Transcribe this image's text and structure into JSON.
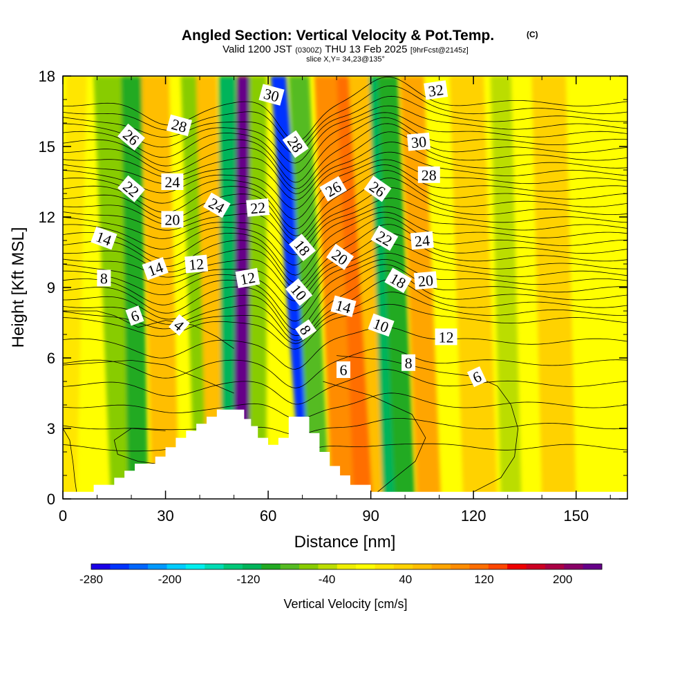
{
  "title": {
    "main": "Angled Section: Vertical Velocity & Pot.Temp.",
    "main_unit": "(C)",
    "valid_prefix": "Valid 1200 JST",
    "valid_utc": "(0300Z)",
    "valid_date": "THU 13 Feb 2025",
    "forecast": "[9hrFcst@2145z]",
    "slice": "slice X,Y= 34,23@135°"
  },
  "chart_data": {
    "type": "heatmap",
    "xlabel": "Distance [nm]",
    "ylabel": "Height [Kft MSL]",
    "xlim": [
      0,
      165
    ],
    "ylim": [
      0,
      18
    ],
    "x_ticks": [
      0,
      30,
      60,
      90,
      120,
      150
    ],
    "y_ticks": [
      0,
      3,
      6,
      9,
      12,
      15,
      18
    ],
    "grid": false,
    "colorbar": {
      "label": "Vertical Velocity [cm/s]",
      "min": -280,
      "max": 240,
      "step": 20,
      "tick_values": [
        -280,
        -200,
        -120,
        -40,
        40,
        120,
        200
      ],
      "colors": [
        "#1a00e6",
        "#0033ff",
        "#0066ff",
        "#0099ff",
        "#00ccff",
        "#00eeee",
        "#00dcb4",
        "#00c878",
        "#00b45a",
        "#22aa22",
        "#55bb22",
        "#88cc00",
        "#bbdd00",
        "#eeee00",
        "#ffff00",
        "#ffe600",
        "#ffd200",
        "#ffbe00",
        "#ffa500",
        "#ff8c00",
        "#ff6e00",
        "#ff4600",
        "#ee0000",
        "#cc0022",
        "#aa0044",
        "#880066",
        "#660088"
      ]
    },
    "velocity_bands": [
      {
        "x_bottom": 1,
        "x_top": 4,
        "half_width": 3,
        "value": 20
      },
      {
        "x_bottom": 18,
        "x_top": 13,
        "half_width": 4,
        "value": -60
      },
      {
        "x_bottom": 22,
        "x_top": 20,
        "half_width": 3,
        "value": -100
      },
      {
        "x_bottom": 30,
        "x_top": 27,
        "half_width": 4,
        "value": 70
      },
      {
        "x_bottom": 41,
        "x_top": 37,
        "half_width": 2.5,
        "value": -50
      },
      {
        "x_bottom": 45,
        "x_top": 42,
        "half_width": 3,
        "value": 60
      },
      {
        "x_bottom": 49,
        "x_top": 48,
        "half_width": 2.5,
        "value": -110
      },
      {
        "x_bottom": 53,
        "x_top": 54,
        "half_width": 3.2,
        "value": 250
      },
      {
        "x_bottom": 57,
        "x_top": 57,
        "half_width": 2.5,
        "value": -60
      },
      {
        "x_bottom": 72,
        "x_top": 63,
        "half_width": 2.3,
        "value": -260
      },
      {
        "x_bottom": 75,
        "x_top": 69,
        "half_width": 3,
        "value": -80
      },
      {
        "x_bottom": 82,
        "x_top": 77,
        "half_width": 3.5,
        "value": 100
      },
      {
        "x_bottom": 88,
        "x_top": 83,
        "half_width": 3,
        "value": 130
      },
      {
        "x_bottom": 94,
        "x_top": 87,
        "half_width": 3.5,
        "value": 60
      },
      {
        "x_bottom": 96,
        "x_top": 92,
        "half_width": 2.5,
        "value": -110
      },
      {
        "x_bottom": 100,
        "x_top": 95,
        "half_width": 3,
        "value": -100
      },
      {
        "x_bottom": 107,
        "x_top": 102,
        "half_width": 3.5,
        "value": 80
      },
      {
        "x_bottom": 122,
        "x_top": 118,
        "half_width": 5,
        "value": 50
      },
      {
        "x_bottom": 131,
        "x_top": 128,
        "half_width": 3,
        "value": -40
      },
      {
        "x_bottom": 145,
        "x_top": 142,
        "half_width": 5,
        "value": 50
      }
    ],
    "terrain": [
      [
        0,
        0.3
      ],
      [
        9,
        0.3
      ],
      [
        9,
        0.6
      ],
      [
        15,
        0.6
      ],
      [
        15,
        0.9
      ],
      [
        18,
        0.9
      ],
      [
        18,
        1.2
      ],
      [
        21,
        1.2
      ],
      [
        21,
        1.5
      ],
      [
        27,
        1.5
      ],
      [
        27,
        1.8
      ],
      [
        30,
        1.8
      ],
      [
        30,
        2.2
      ],
      [
        33,
        2.2
      ],
      [
        33,
        2.6
      ],
      [
        36,
        2.6
      ],
      [
        36,
        2.9
      ],
      [
        39,
        2.9
      ],
      [
        39,
        3.2
      ],
      [
        42,
        3.2
      ],
      [
        42,
        3.5
      ],
      [
        45,
        3.5
      ],
      [
        45,
        3.8
      ],
      [
        53,
        3.8
      ],
      [
        53,
        3.4
      ],
      [
        55,
        3.4
      ],
      [
        55,
        3.1
      ],
      [
        57,
        3.1
      ],
      [
        57,
        2.6
      ],
      [
        60,
        2.6
      ],
      [
        60,
        2.3
      ],
      [
        63,
        2.3
      ],
      [
        63,
        2.6
      ],
      [
        66,
        2.6
      ],
      [
        66,
        3.5
      ],
      [
        72,
        3.5
      ],
      [
        72,
        2.8
      ],
      [
        75,
        2.8
      ],
      [
        75,
        2.0
      ],
      [
        78,
        2.0
      ],
      [
        78,
        1.4
      ],
      [
        81,
        1.4
      ],
      [
        81,
        1.0
      ],
      [
        84,
        1.0
      ],
      [
        84,
        0.6
      ],
      [
        90,
        0.6
      ],
      [
        90,
        0.3
      ],
      [
        165,
        0.3
      ]
    ],
    "theta_isolines": {
      "levels_from": 2,
      "levels_to": 36,
      "level_step": 1,
      "base_height": 4.0,
      "height_per_degree_below_8": 0.9,
      "height_per_degree_above_8": 0.33,
      "perturbations": [
        {
          "x": 30,
          "amplitude": -0.9,
          "width": 10
        },
        {
          "x": 68,
          "amplitude": -1.6,
          "width": 7
        },
        {
          "x": 95,
          "amplitude": 1.0,
          "width": 10
        }
      ]
    },
    "contour_labels": [
      {
        "text": "32",
        "x": 109,
        "y": 17.4,
        "angle": -8
      },
      {
        "text": "30",
        "x": 61,
        "y": 17.2,
        "angle": 15
      },
      {
        "text": "28",
        "x": 34,
        "y": 15.9,
        "angle": 15
      },
      {
        "text": "26",
        "x": 20,
        "y": 15.4,
        "angle": 40
      },
      {
        "text": "30",
        "x": 104,
        "y": 15.2,
        "angle": -5
      },
      {
        "text": "28",
        "x": 68,
        "y": 15.1,
        "angle": 55
      },
      {
        "text": "28",
        "x": 107,
        "y": 13.8,
        "angle": 0
      },
      {
        "text": "24",
        "x": 32,
        "y": 13.5,
        "angle": 0
      },
      {
        "text": "22",
        "x": 20,
        "y": 13.2,
        "angle": 40
      },
      {
        "text": "26",
        "x": 79,
        "y": 13.2,
        "angle": -30
      },
      {
        "text": "26",
        "x": 92,
        "y": 13.2,
        "angle": 35
      },
      {
        "text": "24",
        "x": 45,
        "y": 12.5,
        "angle": 30
      },
      {
        "text": "22",
        "x": 57,
        "y": 12.4,
        "angle": -5
      },
      {
        "text": "20",
        "x": 32,
        "y": 11.9,
        "angle": 0
      },
      {
        "text": "14",
        "x": 12,
        "y": 11.1,
        "angle": 20
      },
      {
        "text": "22",
        "x": 94,
        "y": 11.1,
        "angle": 30
      },
      {
        "text": "24",
        "x": 105,
        "y": 11.0,
        "angle": -5
      },
      {
        "text": "18",
        "x": 70,
        "y": 10.7,
        "angle": 50
      },
      {
        "text": "20",
        "x": 81,
        "y": 10.3,
        "angle": 35
      },
      {
        "text": "12",
        "x": 39,
        "y": 10.0,
        "angle": -5
      },
      {
        "text": "14",
        "x": 27,
        "y": 9.8,
        "angle": -20
      },
      {
        "text": "8",
        "x": 12,
        "y": 9.4,
        "angle": 0
      },
      {
        "text": "12",
        "x": 54,
        "y": 9.4,
        "angle": -10
      },
      {
        "text": "18",
        "x": 98,
        "y": 9.3,
        "angle": 30
      },
      {
        "text": "20",
        "x": 106,
        "y": 9.3,
        "angle": -5
      },
      {
        "text": "10",
        "x": 69,
        "y": 8.8,
        "angle": 50
      },
      {
        "text": "14",
        "x": 82,
        "y": 8.2,
        "angle": 15
      },
      {
        "text": "6",
        "x": 21,
        "y": 7.8,
        "angle": -20
      },
      {
        "text": "10",
        "x": 93,
        "y": 7.4,
        "angle": 20
      },
      {
        "text": "4",
        "x": 34,
        "y": 7.4,
        "angle": 40
      },
      {
        "text": "8",
        "x": 71,
        "y": 7.2,
        "angle": 55
      },
      {
        "text": "12",
        "x": 112,
        "y": 6.9,
        "angle": 0
      },
      {
        "text": "8",
        "x": 101,
        "y": 5.8,
        "angle": 0
      },
      {
        "text": "6",
        "x": 82,
        "y": 5.5,
        "angle": 0
      },
      {
        "text": "6",
        "x": 121,
        "y": 5.2,
        "angle": -25
      }
    ],
    "low_level_contours": [
      {
        "points": [
          [
            0,
            3.0
          ],
          [
            2,
            2.5
          ],
          [
            3,
            1.5
          ],
          [
            3.5,
            0.8
          ],
          [
            4,
            0.3
          ]
        ]
      },
      {
        "points": [
          [
            30,
            2.9
          ],
          [
            20,
            3.0
          ],
          [
            15,
            2.5
          ],
          [
            16,
            1.9
          ],
          [
            22,
            1.6
          ],
          [
            27,
            1.5
          ]
        ]
      },
      {
        "points": [
          [
            0,
            5.7
          ],
          [
            20,
            5.9
          ],
          [
            30,
            5.7
          ],
          [
            42,
            5.0
          ],
          [
            50,
            4.5
          ]
        ]
      },
      {
        "points": [
          [
            0,
            8.0
          ],
          [
            10,
            8.0
          ],
          [
            15,
            7.8
          ],
          [
            22,
            7.3
          ],
          [
            30,
            7.6
          ],
          [
            38,
            7.4
          ],
          [
            45,
            6.9
          ],
          [
            50,
            6.4
          ]
        ]
      },
      {
        "points": [
          [
            76,
            5.0
          ],
          [
            90,
            4.4
          ],
          [
            102,
            3.6
          ],
          [
            106,
            2.6
          ],
          [
            103,
            1.6
          ],
          [
            97,
            0.9
          ],
          [
            92,
            0.3
          ]
        ]
      },
      {
        "points": [
          [
            80,
            6.1
          ],
          [
            95,
            5.9
          ],
          [
            110,
            5.4
          ],
          [
            121,
            5.2
          ],
          [
            127,
            4.8
          ],
          [
            131,
            4.0
          ],
          [
            133,
            3.0
          ],
          [
            132,
            1.8
          ],
          [
            128,
            0.9
          ],
          [
            120,
            0.3
          ]
        ]
      }
    ]
  }
}
